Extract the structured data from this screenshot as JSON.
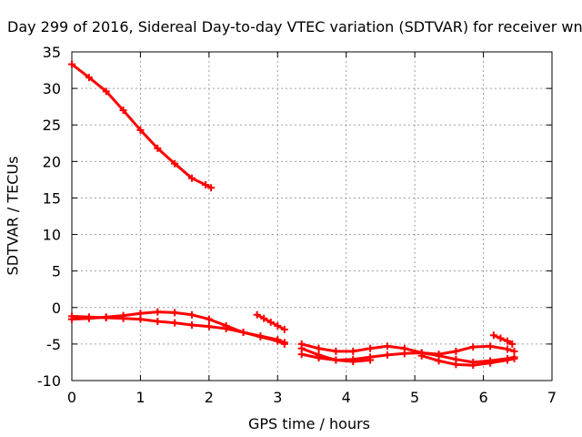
{
  "chart_data": {
    "type": "scatter",
    "title": "Day 299 of 2016, Sidereal Day-to-day VTEC variation (SDTVAR) for receiver wn",
    "xlabel": "GPS time / hours",
    "ylabel": "SDTVAR / TECUs",
    "xlim": [
      0,
      7
    ],
    "ylim": [
      -10,
      35
    ],
    "xticks": [
      "0",
      "1",
      "2",
      "3",
      "4",
      "5",
      "6",
      "7"
    ],
    "yticks": [
      "-10",
      "-5",
      "0",
      "5",
      "10",
      "15",
      "20",
      "25",
      "30",
      "35"
    ],
    "grid": true,
    "marker_color": "#ff0000",
    "series": [
      {
        "x": [
          0.0,
          0.25,
          0.5,
          0.75,
          1.0,
          1.25,
          1.5,
          1.75,
          1.95,
          2.03
        ],
        "y": [
          33.3,
          31.5,
          29.6,
          27.0,
          24.3,
          21.8,
          19.7,
          17.7,
          16.8,
          16.4
        ]
      },
      {
        "x": [
          0.0,
          0.25,
          0.5,
          0.75,
          1.0,
          1.25,
          1.5,
          1.75,
          2.0,
          2.25,
          2.5,
          2.75,
          3.0,
          3.1
        ],
        "y": [
          -1.6,
          -1.5,
          -1.3,
          -1.1,
          -0.8,
          -0.6,
          -0.7,
          -1.0,
          -1.6,
          -2.5,
          -3.4,
          -4.0,
          -4.6,
          -5.0
        ]
      },
      {
        "x": [
          0.0,
          0.25,
          0.5,
          0.75,
          1.0,
          1.25,
          1.5,
          1.75,
          2.0,
          2.25,
          2.5,
          2.75,
          3.0,
          3.1
        ],
        "y": [
          -1.2,
          -1.3,
          -1.4,
          -1.5,
          -1.6,
          -1.9,
          -2.1,
          -2.4,
          -2.6,
          -2.9,
          -3.4,
          -3.9,
          -4.4,
          -4.8
        ]
      },
      {
        "x": [
          2.7,
          2.8,
          2.9,
          3.0,
          3.1
        ],
        "y": [
          -1.0,
          -1.5,
          -2.0,
          -2.5,
          -3.0
        ]
      },
      {
        "x": [
          3.35,
          3.6,
          3.85,
          4.1,
          4.35,
          4.6,
          4.85,
          5.1,
          5.35,
          5.6,
          5.85,
          6.1,
          6.35,
          6.45
        ],
        "y": [
          -5.0,
          -5.6,
          -6.0,
          -6.0,
          -5.6,
          -5.3,
          -5.6,
          -6.2,
          -6.4,
          -6.0,
          -5.4,
          -5.3,
          -5.7,
          -6.0
        ]
      },
      {
        "x": [
          3.35,
          3.6,
          3.85,
          4.1,
          4.35,
          4.6,
          4.85,
          5.1,
          5.35,
          5.6,
          5.85,
          6.1,
          6.35,
          6.45
        ],
        "y": [
          -6.4,
          -6.9,
          -7.2,
          -7.1,
          -6.8,
          -6.5,
          -6.3,
          -6.2,
          -6.6,
          -7.1,
          -7.5,
          -7.3,
          -7.0,
          -6.8
        ]
      },
      {
        "x": [
          3.35,
          3.6,
          3.85,
          4.1,
          4.35
        ],
        "y": [
          -5.6,
          -6.5,
          -7.2,
          -7.4,
          -7.2
        ]
      },
      {
        "x": [
          5.1,
          5.35,
          5.6,
          5.85,
          6.1,
          6.35,
          6.45
        ],
        "y": [
          -6.6,
          -7.3,
          -7.8,
          -7.9,
          -7.6,
          -7.2,
          -7.0
        ]
      },
      {
        "x": [
          6.15,
          6.25,
          6.35,
          6.42
        ],
        "y": [
          -3.8,
          -4.2,
          -4.6,
          -5.0
        ]
      }
    ]
  }
}
